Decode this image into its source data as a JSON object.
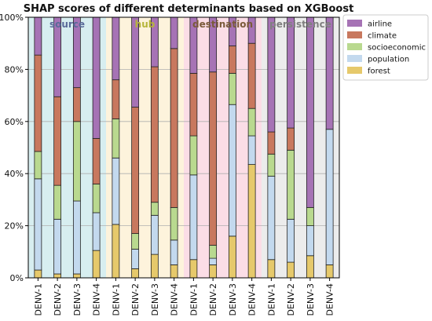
{
  "chart_data": {
    "type": "bar",
    "stacked": true,
    "title": "SHAP scores of different determinants based on XGBoost",
    "xlabel": "",
    "ylabel": "",
    "ylim": [
      0,
      100
    ],
    "yticks": [
      "0%",
      "20%",
      "40%",
      "60%",
      "80%",
      "100%"
    ],
    "grid": true,
    "legend_position": "top-right",
    "categories": [
      "DENV-1",
      "DENV-2",
      "DENV-3",
      "DENV-4",
      "DENV-1",
      "DENV-2",
      "DENV-3",
      "DENV-4",
      "DENV-1",
      "DENV-2",
      "DENV-3",
      "DENV-4",
      "DENV-1",
      "DENV-2",
      "DENV-3",
      "DENV-4"
    ],
    "groups": [
      {
        "label": "source",
        "start": 0,
        "end": 3,
        "color": "#d7eef0",
        "text_color": "#5a6a99"
      },
      {
        "label": "hub",
        "start": 4,
        "end": 7,
        "color": "#fdf3dc",
        "text_color": "#b5b53a"
      },
      {
        "label": "destination",
        "start": 8,
        "end": 11,
        "color": "#fbdde6",
        "text_color": "#7a5a3a"
      },
      {
        "label": "persistence",
        "start": 12,
        "end": 15,
        "color": "#ececec",
        "text_color": "#808080"
      }
    ],
    "series": [
      {
        "name": "forest",
        "color": "#e6c96b",
        "values": [
          3,
          1.5,
          1.5,
          10.5,
          20.5,
          3.5,
          9,
          5,
          7,
          5,
          16,
          43.5,
          7,
          6,
          8.5,
          5
        ]
      },
      {
        "name": "population",
        "color": "#c3d9ee",
        "values": [
          35,
          21,
          28,
          14.5,
          25.5,
          7.5,
          15,
          9.5,
          32.5,
          2.5,
          50.5,
          11,
          32,
          16.5,
          11.5,
          52
        ]
      },
      {
        "name": "socioeconomic",
        "color": "#b9d98f",
        "values": [
          10.5,
          13,
          30.5,
          11,
          15,
          6,
          5,
          12.5,
          15,
          5,
          12,
          10.5,
          8.5,
          26.5,
          7,
          0
        ]
      },
      {
        "name": "climate",
        "color": "#c8785e",
        "values": [
          37,
          34,
          13,
          17.5,
          15,
          48.5,
          52,
          61,
          24,
          66.5,
          10.5,
          25,
          8.5,
          8.5,
          0,
          0
        ]
      },
      {
        "name": "airline",
        "color": "#a673b5",
        "values": [
          14.5,
          30.5,
          27,
          46.5,
          24,
          34.5,
          19,
          12,
          21.5,
          21,
          11,
          10,
          44,
          42.5,
          73,
          43
        ]
      }
    ]
  }
}
